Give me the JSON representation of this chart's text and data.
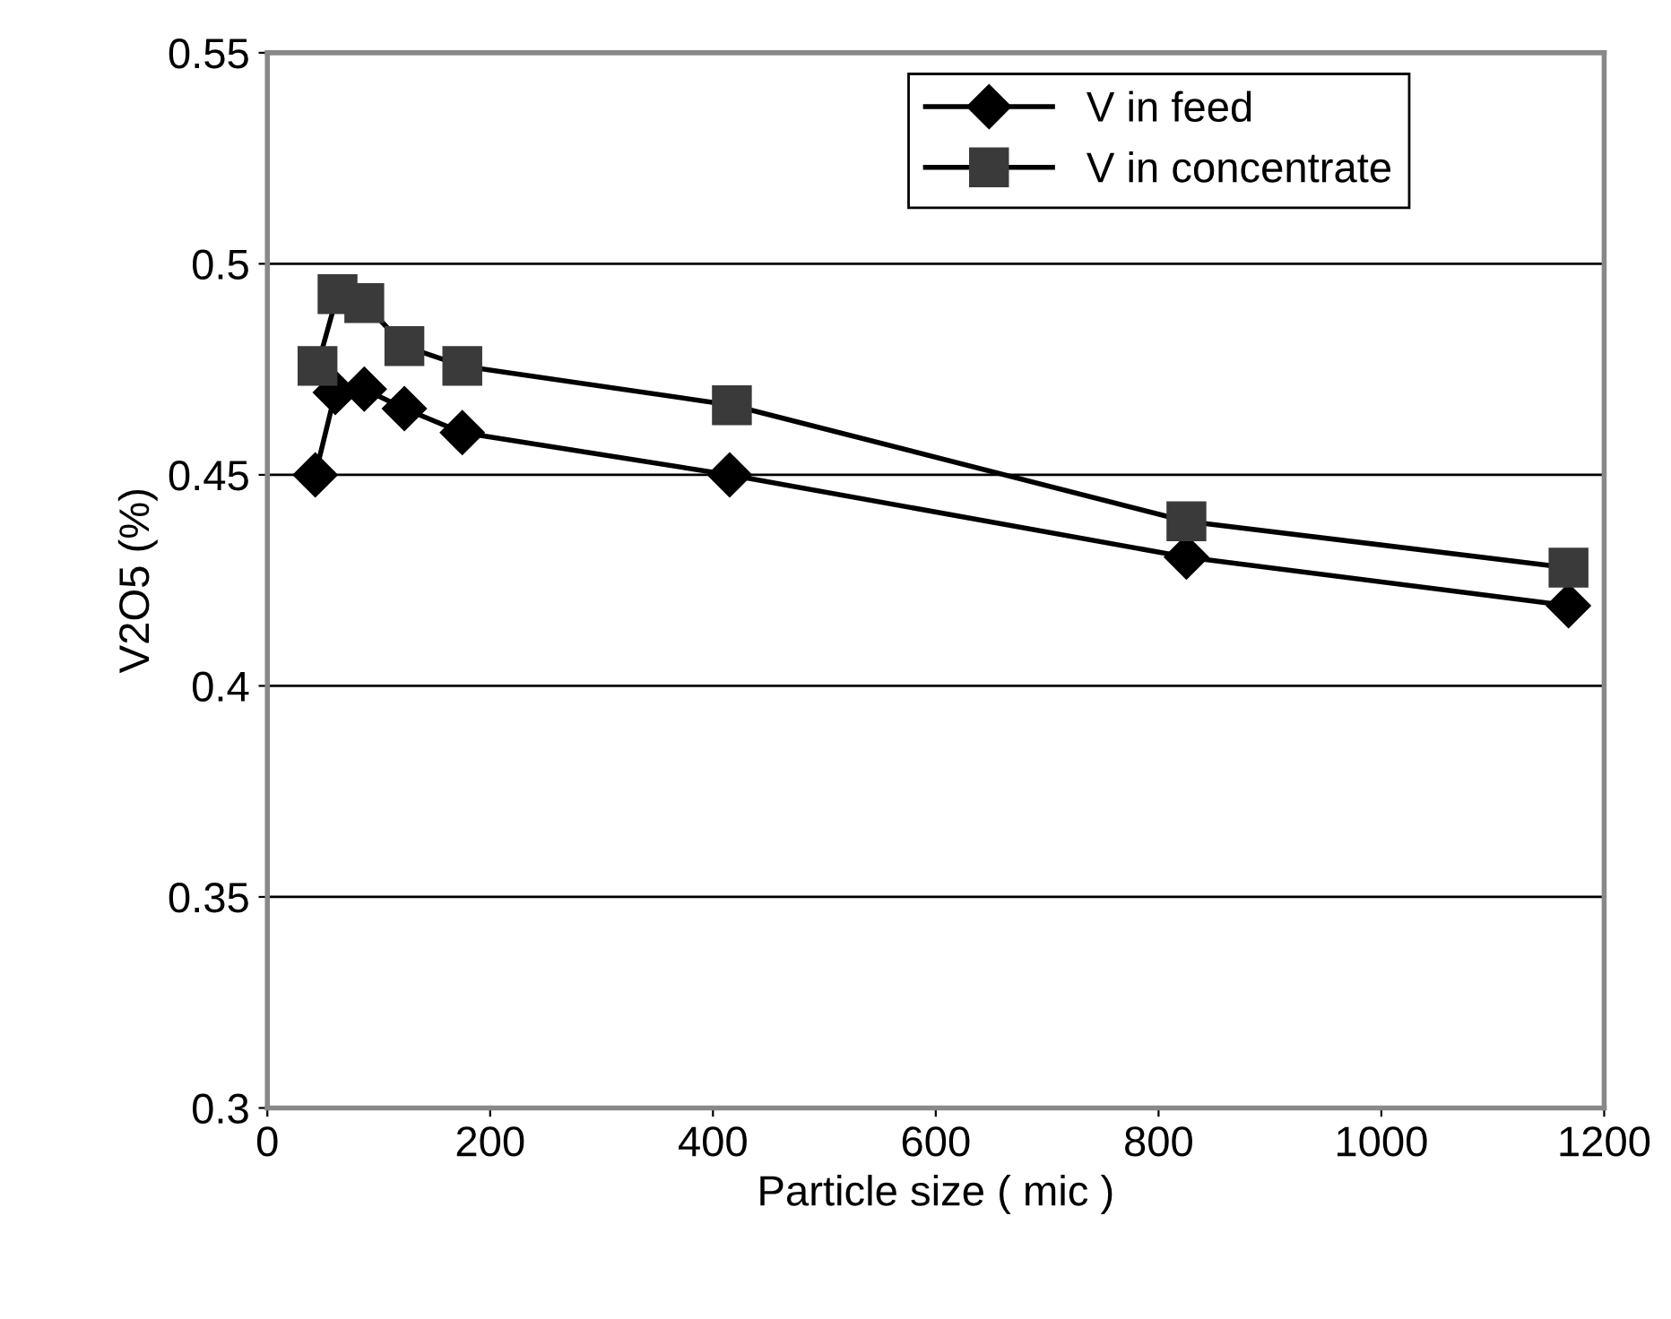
{
  "chart_data": {
    "type": "line",
    "xlabel": "Particle size ( mic )",
    "ylabel": "V2O5 (%)",
    "xlim": [
      0,
      1200
    ],
    "xticks": [
      0,
      200,
      400,
      600,
      800,
      1000,
      1200
    ],
    "ylim": [
      0.3,
      0.55
    ],
    "yticks": [
      0.3,
      0.35,
      0.4,
      0.45,
      0.5,
      0.55
    ],
    "grid": "y",
    "legend": "top right",
    "series": [
      {
        "name": "V in feed",
        "color": "#000000",
        "marker": "diamond",
        "x": [
          43,
          61,
          87,
          123,
          175,
          415,
          825,
          1168
        ],
        "values": [
          0.45,
          0.4695,
          0.4703,
          0.4657,
          0.46,
          0.45,
          0.4305,
          0.419
        ]
      },
      {
        "name": "V in concentrate",
        "color": "#3a3a3a",
        "marker": "square",
        "x": [
          45,
          63,
          87,
          123,
          175,
          417,
          825,
          1168
        ],
        "values": [
          0.4758,
          0.4928,
          0.4907,
          0.4805,
          0.4758,
          0.4665,
          0.439,
          0.428
        ]
      }
    ]
  }
}
